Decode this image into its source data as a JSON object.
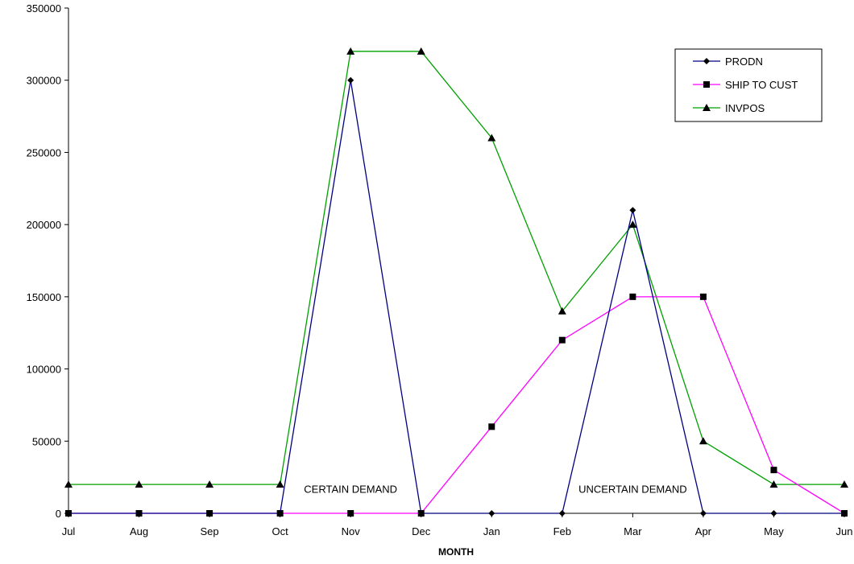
{
  "chart_data": {
    "type": "line",
    "title": "",
    "xlabel": "MONTH",
    "ylabel": "",
    "categories": [
      "Jul",
      "Aug",
      "Sep",
      "Oct",
      "Nov",
      "Dec",
      "Jan",
      "Feb",
      "Mar",
      "Apr",
      "May",
      "Jun"
    ],
    "ylim": [
      0,
      350000
    ],
    "yticks": [
      "0",
      "50000",
      "100000",
      "150000",
      "200000",
      "250000",
      "300000",
      "350000"
    ],
    "grid": false,
    "legend_position": "top-right",
    "series": [
      {
        "name": "PRODN",
        "color": "#000080",
        "marker": "diamond",
        "values": [
          0,
          0,
          0,
          0,
          300000,
          0,
          0,
          0,
          210000,
          0,
          0,
          0
        ]
      },
      {
        "name": "SHIP TO CUST",
        "color": "#ff00ff",
        "marker": "square",
        "values": [
          0,
          0,
          0,
          0,
          0,
          0,
          60000,
          120000,
          150000,
          150000,
          30000,
          0
        ]
      },
      {
        "name": "INVPOS",
        "color": "#00a000",
        "marker": "triangle",
        "values": [
          20000,
          20000,
          20000,
          20000,
          320000,
          320000,
          260000,
          140000,
          200000,
          50000,
          20000,
          20000
        ]
      }
    ],
    "annotations": [
      {
        "text": "CERTAIN DEMAND",
        "x": "Nov",
        "y": 17000
      },
      {
        "text": "UNCERTAIN DEMAND",
        "x": "Mar",
        "y": 17000
      }
    ]
  }
}
